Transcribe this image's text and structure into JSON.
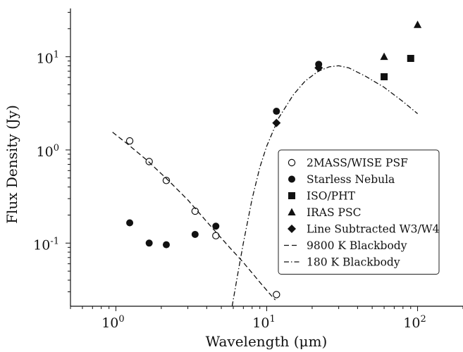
{
  "chart_data": {
    "type": "scatter",
    "xscale": "log",
    "yscale": "log",
    "xlim": [
      0.5,
      200
    ],
    "ylim": [
      0.021,
      33
    ],
    "xlabel": "Wavelength (μm)",
    "ylabel": "Flux Density (Jy)",
    "legend_position": "lower-right",
    "grid": false,
    "x_ticks": [
      {
        "value": 1,
        "base": "10",
        "exp": "0"
      },
      {
        "value": 10,
        "base": "10",
        "exp": "1"
      },
      {
        "value": 100,
        "base": "10",
        "exp": "2"
      }
    ],
    "y_ticks": [
      {
        "value": 0.1,
        "base": "10",
        "exp": "-1"
      },
      {
        "value": 1,
        "base": "10",
        "exp": "0"
      },
      {
        "value": 10,
        "base": "10",
        "exp": "1"
      }
    ],
    "series": [
      {
        "name": "2MASS/WISE PSF",
        "marker": "open-circle",
        "color": "#111111",
        "points": [
          [
            1.235,
            1.25
          ],
          [
            1.662,
            0.75
          ],
          [
            2.159,
            0.47
          ],
          [
            3.35,
            0.22
          ],
          [
            4.6,
            0.12
          ],
          [
            11.6,
            0.028
          ]
        ]
      },
      {
        "name": "Starless Nebula",
        "marker": "filled-circle",
        "color": "#111111",
        "points": [
          [
            1.235,
            0.165
          ],
          [
            1.662,
            0.1
          ],
          [
            2.159,
            0.096
          ],
          [
            3.35,
            0.124
          ],
          [
            4.6,
            0.152
          ],
          [
            11.6,
            2.6
          ],
          [
            22.1,
            8.3
          ]
        ]
      },
      {
        "name": "ISO/PHT",
        "marker": "square",
        "color": "#111111",
        "points": [
          [
            60,
            6.1
          ],
          [
            90,
            9.6
          ]
        ]
      },
      {
        "name": "IRAS PSC",
        "marker": "triangle",
        "color": "#111111",
        "points": [
          [
            60,
            10.0
          ],
          [
            100,
            22.0
          ]
        ]
      },
      {
        "name": "Line Subtracted W3/W4",
        "marker": "diamond",
        "color": "#111111",
        "points": [
          [
            11.6,
            1.95
          ],
          [
            22.1,
            7.6
          ]
        ]
      },
      {
        "name": "9800 K Blackbody",
        "marker": "dashed-line",
        "color": "#111111",
        "points": [
          [
            0.95,
            1.55
          ],
          [
            1.2,
            1.15
          ],
          [
            1.6,
            0.78
          ],
          [
            2.2,
            0.48
          ],
          [
            3.0,
            0.29
          ],
          [
            4.0,
            0.17
          ],
          [
            5.5,
            0.095
          ],
          [
            7.0,
            0.062
          ],
          [
            9.0,
            0.038
          ],
          [
            11.0,
            0.026
          ],
          [
            11.4,
            0.0245
          ]
        ]
      },
      {
        "name": "180 K Blackbody",
        "marker": "dashdot-line",
        "color": "#111111",
        "points": [
          [
            5.9,
            0.021
          ],
          [
            6.5,
            0.052
          ],
          [
            7.0,
            0.1
          ],
          [
            8.0,
            0.3
          ],
          [
            9.0,
            0.65
          ],
          [
            10.0,
            1.1
          ],
          [
            12.0,
            2.2
          ],
          [
            15.0,
            3.9
          ],
          [
            18.0,
            5.5
          ],
          [
            22.0,
            7.0
          ],
          [
            26.0,
            7.8
          ],
          [
            30.0,
            8.0
          ],
          [
            35.0,
            7.6
          ],
          [
            45.0,
            6.2
          ],
          [
            60.0,
            4.7
          ],
          [
            80.0,
            3.3
          ],
          [
            100.0,
            2.45
          ]
        ]
      }
    ]
  }
}
